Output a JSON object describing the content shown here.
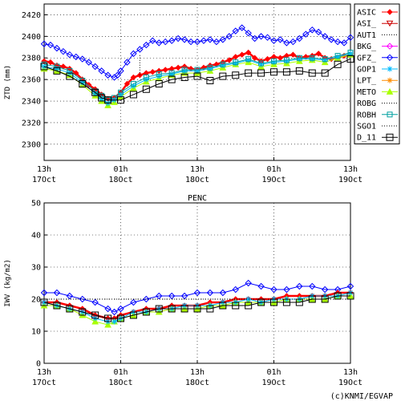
{
  "credit": "(c)KNMI/EGVAP",
  "x_ticks": [
    {
      "t": 0,
      "l1": "13h",
      "l2": "17Oct"
    },
    {
      "t": 12,
      "l1": "01h",
      "l2": "18Oct"
    },
    {
      "t": 24,
      "l1": "13h",
      "l2": "18Oct"
    },
    {
      "t": 36,
      "l1": "01h",
      "l2": "19Oct"
    },
    {
      "t": 48,
      "l1": "13h",
      "l2": "19Oct"
    }
  ],
  "legend": [
    {
      "name": "ASIC",
      "color": "#ff0000",
      "marker": "diamond-filled"
    },
    {
      "name": "ASI_",
      "color": "#cc0000",
      "marker": "triangle-down"
    },
    {
      "name": "AUT1",
      "color": "#000000",
      "marker": "dots"
    },
    {
      "name": "BKG_",
      "color": "#ff00ff",
      "marker": "diamond"
    },
    {
      "name": "GFZ_",
      "color": "#0000ff",
      "marker": "diamond"
    },
    {
      "name": "GOP1",
      "color": "#00bbff",
      "marker": "star"
    },
    {
      "name": "LPT_",
      "color": "#ff8c00",
      "marker": "star"
    },
    {
      "name": "METO",
      "color": "#aaff00",
      "marker": "triangle-up-filled"
    },
    {
      "name": "ROBG",
      "color": "#000000",
      "marker": "dots"
    },
    {
      "name": "ROBH",
      "color": "#00a0a0",
      "marker": "square"
    },
    {
      "name": "SGO1",
      "color": "#000000",
      "marker": "dots"
    },
    {
      "name": "D_11",
      "color": "#000000",
      "marker": "square-large"
    }
  ],
  "chart_data": [
    {
      "type": "line",
      "title": "",
      "xlabel": "",
      "ylabel": "ZTD (mm)",
      "ylim": [
        2285,
        2430
      ],
      "yticks": [
        2300,
        2320,
        2340,
        2360,
        2380,
        2400,
        2420
      ],
      "xlim": [
        0,
        48
      ],
      "grid": true,
      "legend_position": "right",
      "series": [
        {
          "name": "GFZ_",
          "x": [
            0,
            1,
            2,
            3,
            4,
            5,
            6,
            7,
            8,
            9,
            10,
            11,
            11.5,
            12,
            13,
            14,
            15,
            16,
            17,
            18,
            19,
            20,
            21,
            22,
            23,
            24,
            25,
            26,
            27,
            28,
            29,
            30,
            31,
            32,
            33,
            34,
            35,
            36,
            37,
            38,
            39,
            40,
            41,
            42,
            43,
            44,
            45,
            46,
            47,
            48
          ],
          "y": [
            2393,
            2392,
            2389,
            2386,
            2383,
            2381,
            2379,
            2376,
            2372,
            2368,
            2364,
            2362,
            2364,
            2368,
            2376,
            2384,
            2388,
            2392,
            2396,
            2394,
            2395,
            2396,
            2398,
            2397,
            2395,
            2395,
            2396,
            2397,
            2395,
            2397,
            2400,
            2405,
            2408,
            2403,
            2398,
            2400,
            2399,
            2396,
            2397,
            2394,
            2395,
            2398,
            2402,
            2406,
            2404,
            2400,
            2397,
            2395,
            2394,
            2399
          ]
        },
        {
          "name": "ASIC",
          "x": [
            0,
            1,
            2,
            3,
            4,
            5,
            6,
            7,
            8,
            9,
            10,
            11,
            12,
            13,
            14,
            15,
            16,
            17,
            18,
            19,
            20,
            21,
            22,
            23,
            24,
            25,
            26,
            27,
            28,
            29,
            30,
            31,
            32,
            33,
            34,
            35,
            36,
            37,
            38,
            39,
            40,
            41,
            42,
            43,
            44,
            45,
            46,
            47,
            48
          ],
          "y": [
            2377,
            2376,
            2373,
            2372,
            2370,
            2366,
            2360,
            2355,
            2351,
            2346,
            2342,
            2343,
            2348,
            2356,
            2362,
            2364,
            2366,
            2367,
            2368,
            2369,
            2370,
            2371,
            2372,
            2370,
            2369,
            2371,
            2373,
            2374,
            2376,
            2378,
            2381,
            2383,
            2385,
            2380,
            2377,
            2379,
            2381,
            2380,
            2382,
            2383,
            2380,
            2381,
            2382,
            2384,
            2380,
            2379,
            2380,
            2382,
            2383
          ]
        },
        {
          "name": "METO",
          "x": [
            0,
            2,
            4,
            6,
            8,
            9,
            10,
            11,
            12,
            14,
            16,
            18,
            20,
            22,
            24,
            26,
            28,
            30,
            32,
            34,
            36,
            38,
            40,
            42,
            44,
            46,
            48
          ],
          "y": [
            2370,
            2368,
            2364,
            2355,
            2345,
            2340,
            2336,
            2339,
            2344,
            2352,
            2358,
            2361,
            2364,
            2366,
            2366,
            2368,
            2371,
            2374,
            2376,
            2372,
            2374,
            2375,
            2377,
            2378,
            2376,
            2380,
            2383
          ]
        },
        {
          "name": "GOP1",
          "x": [
            0,
            2,
            4,
            6,
            8,
            9,
            10,
            11,
            12,
            14,
            16,
            18,
            20,
            22,
            24,
            26,
            28,
            30,
            32,
            34,
            36,
            38,
            40,
            42,
            44,
            46,
            48
          ],
          "y": [
            2372,
            2370,
            2366,
            2357,
            2347,
            2342,
            2338,
            2341,
            2346,
            2354,
            2360,
            2363,
            2365,
            2368,
            2368,
            2370,
            2373,
            2375,
            2378,
            2374,
            2376,
            2377,
            2379,
            2379,
            2378,
            2381,
            2384
          ]
        },
        {
          "name": "ROBH",
          "x": [
            0,
            2,
            4,
            6,
            8,
            9,
            10,
            11,
            12,
            14,
            16,
            18,
            20,
            22,
            24,
            26,
            28,
            30,
            32,
            34,
            36,
            38,
            40,
            42,
            44,
            46,
            48
          ],
          "y": [
            2374,
            2372,
            2368,
            2359,
            2349,
            2345,
            2341,
            2343,
            2348,
            2356,
            2362,
            2365,
            2366,
            2369,
            2369,
            2371,
            2374,
            2376,
            2379,
            2375,
            2377,
            2378,
            2380,
            2380,
            2379,
            2382,
            2385
          ]
        },
        {
          "name": "D_11",
          "x": [
            0,
            2,
            4,
            6,
            8,
            9,
            10,
            12,
            14,
            16,
            18,
            20,
            22,
            24,
            26,
            28,
            30,
            32,
            34,
            36,
            38,
            40,
            42,
            44,
            46,
            48
          ],
          "y": [
            2372,
            2368,
            2363,
            2356,
            2348,
            2343,
            2341,
            2341,
            2346,
            2351,
            2356,
            2360,
            2362,
            2363,
            2359,
            2363,
            2364,
            2366,
            2366,
            2367,
            2367,
            2368,
            2366,
            2366,
            2374,
            2379
          ]
        },
        {
          "name": "AUT1",
          "x": [
            15,
            15
          ],
          "y": [
            2364,
            2384
          ]
        }
      ]
    },
    {
      "type": "line",
      "title": "PENC",
      "xlabel": "",
      "ylabel": "IWV (kg/m2)",
      "ylim": [
        0,
        50
      ],
      "yticks": [
        0,
        10,
        20,
        30,
        40,
        50
      ],
      "xlim": [
        0,
        48
      ],
      "grid": true,
      "legend_position": "none",
      "series": [
        {
          "name": "GFZ_",
          "x": [
            0,
            2,
            4,
            6,
            8,
            10,
            11,
            12,
            14,
            16,
            18,
            20,
            22,
            24,
            26,
            28,
            30,
            32,
            34,
            36,
            38,
            40,
            42,
            44,
            46,
            48
          ],
          "y": [
            22,
            22,
            21,
            20,
            19,
            17,
            16,
            17,
            19,
            20,
            21,
            21,
            21,
            22,
            22,
            22,
            23,
            25,
            24,
            23,
            23,
            24,
            24,
            23,
            23,
            24
          ]
        },
        {
          "name": "ASIC",
          "x": [
            0,
            2,
            4,
            6,
            8,
            10,
            11,
            12,
            14,
            16,
            18,
            20,
            22,
            24,
            26,
            28,
            30,
            32,
            34,
            36,
            38,
            40,
            42,
            44,
            46,
            48
          ],
          "y": [
            19,
            19,
            18,
            17,
            15,
            14,
            14,
            15,
            16,
            17,
            17,
            18,
            18,
            18,
            19,
            19,
            20,
            20,
            20,
            20,
            21,
            21,
            21,
            21,
            22,
            22
          ]
        },
        {
          "name": "METO",
          "x": [
            0,
            2,
            4,
            6,
            8,
            10,
            11,
            12,
            14,
            16,
            18,
            20,
            22,
            24,
            26,
            28,
            30,
            32,
            34,
            36,
            38,
            40,
            42,
            44,
            46,
            48
          ],
          "y": [
            18,
            18,
            17,
            15,
            13,
            12,
            13,
            14,
            15,
            16,
            16,
            17,
            17,
            17,
            18,
            18,
            19,
            19,
            19,
            19,
            20,
            20,
            20,
            20,
            21,
            21
          ]
        },
        {
          "name": "GOP1",
          "x": [
            0,
            2,
            4,
            6,
            8,
            10,
            11,
            12,
            14,
            16,
            18,
            20,
            22,
            24,
            26,
            28,
            30,
            32,
            34,
            36,
            38,
            40,
            42,
            44,
            46,
            48
          ],
          "y": [
            19,
            18,
            17,
            16,
            14,
            13,
            13,
            14,
            16,
            16,
            17,
            17,
            18,
            18,
            18,
            19,
            19,
            20,
            19,
            20,
            20,
            20,
            21,
            21,
            21,
            22
          ]
        },
        {
          "name": "D_11",
          "x": [
            0,
            2,
            4,
            6,
            8,
            10,
            12,
            14,
            16,
            18,
            20,
            22,
            24,
            26,
            28,
            30,
            32,
            34,
            36,
            38,
            40,
            42,
            44,
            46,
            48
          ],
          "y": [
            19,
            18,
            17,
            16,
            15,
            14,
            14,
            15,
            16,
            17,
            17,
            17,
            17,
            17,
            18,
            18,
            18,
            19,
            19,
            19,
            19,
            20,
            20,
            21,
            21
          ]
        },
        {
          "name": "AUT1",
          "x": [
            0,
            48
          ],
          "y": [
            20,
            20
          ]
        }
      ]
    }
  ]
}
